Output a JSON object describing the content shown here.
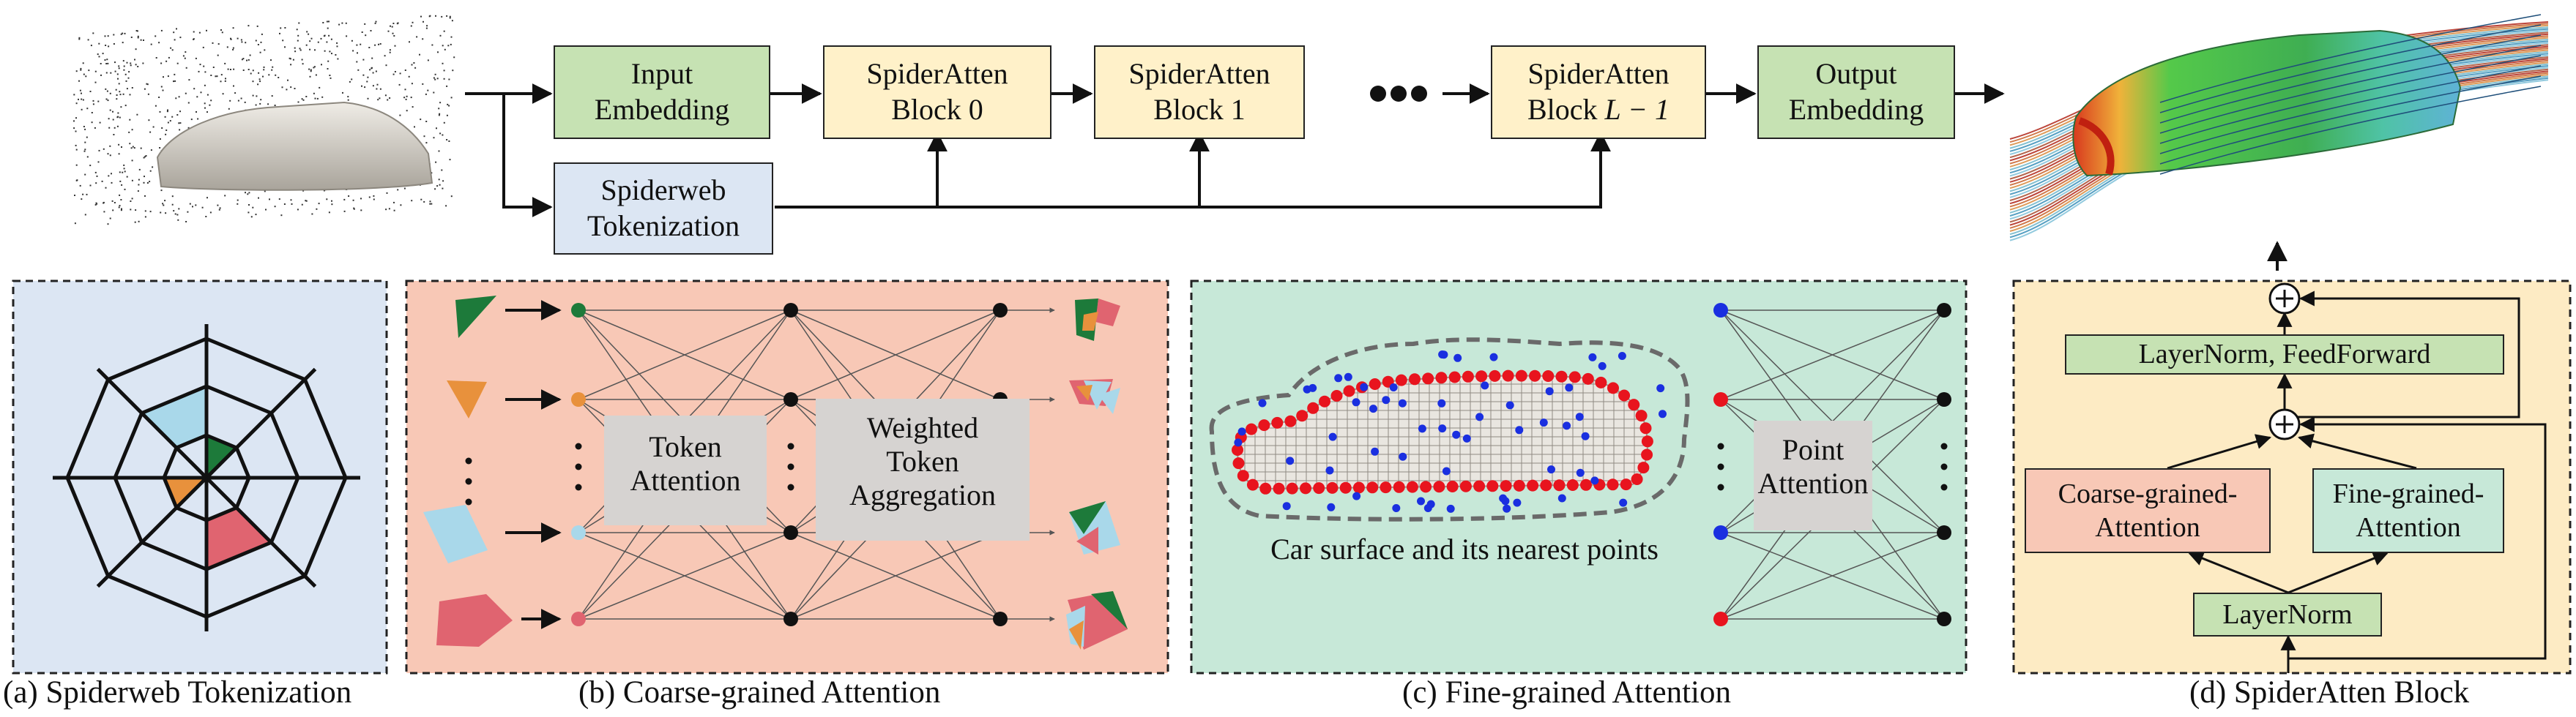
{
  "pipeline": {
    "input_embedding": "Input\nEmbedding",
    "block0": "SpiderAtten\nBlock 0",
    "block1": "SpiderAtten\nBlock 1",
    "block_last_line1": "SpiderAtten",
    "block_last_line2_prefix": "Block ",
    "block_last_line2_math": "L − 1",
    "output_embedding": "Output\nEmbedding",
    "tokenization": "Spiderweb\nTokenization"
  },
  "panel_b": {
    "token_attention": "Token\nAttention",
    "weighted_aggregation": "Weighted\nToken\nAggregation"
  },
  "panel_c": {
    "point_attention": "Point\nAttention",
    "car_caption": "Car surface and its nearest points"
  },
  "panel_d": {
    "layernorm_ff": "LayerNorm, FeedForward",
    "coarse": "Coarse-grained-\nAttention",
    "fine": "Fine-grained-\nAttention",
    "layernorm": "LayerNorm"
  },
  "captions": {
    "a": "(a) Spiderweb Tokenization",
    "b": "(b) Coarse-grained Attention",
    "c": "(c) Fine-grained Attention",
    "d": "(d) SpiderAtten Block"
  },
  "colors": {
    "panel_a_bg": "#dce6f3",
    "panel_b_bg": "#f8c8b6",
    "panel_c_bg": "#c7e8d8",
    "panel_d_bg": "#fdebc4",
    "green_box": "#c6e2b3",
    "yellow_box": "#fff1c9",
    "light_blue": "#a9d8ea",
    "dark_green": "#1d7a3a",
    "orange": "#e8913c",
    "red": "#e06470",
    "point_red": "#e8141e",
    "point_blue": "#1a2fe0"
  }
}
